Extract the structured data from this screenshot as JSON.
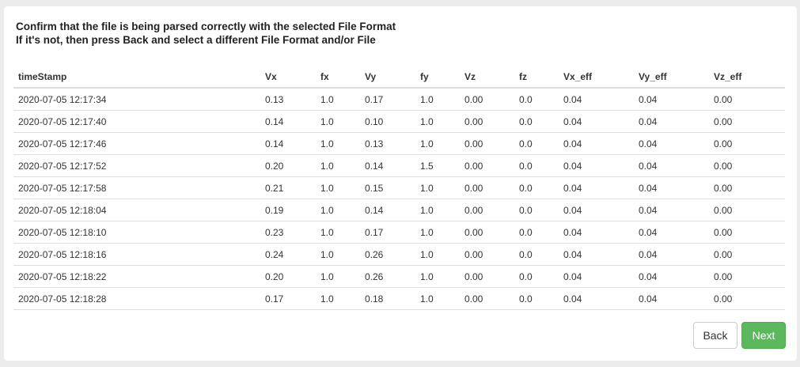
{
  "instructions": {
    "line1": "Confirm that the file is being parsed correctly with the selected File Format",
    "line2": "If it's not, then press Back and select a different File Format and/or File"
  },
  "table": {
    "columns": [
      "timeStamp",
      "Vx",
      "fx",
      "Vy",
      "fy",
      "Vz",
      "fz",
      "Vx_eff",
      "Vy_eff",
      "Vz_eff"
    ],
    "rows": [
      [
        "2020-07-05 12:17:34",
        "0.13",
        "1.0",
        "0.17",
        "1.0",
        "0.00",
        "0.0",
        "0.04",
        "0.04",
        "0.00"
      ],
      [
        "2020-07-05 12:17:40",
        "0.14",
        "1.0",
        "0.10",
        "1.0",
        "0.00",
        "0.0",
        "0.04",
        "0.04",
        "0.00"
      ],
      [
        "2020-07-05 12:17:46",
        "0.14",
        "1.0",
        "0.13",
        "1.0",
        "0.00",
        "0.0",
        "0.04",
        "0.04",
        "0.00"
      ],
      [
        "2020-07-05 12:17:52",
        "0.20",
        "1.0",
        "0.14",
        "1.5",
        "0.00",
        "0.0",
        "0.04",
        "0.04",
        "0.00"
      ],
      [
        "2020-07-05 12:17:58",
        "0.21",
        "1.0",
        "0.15",
        "1.0",
        "0.00",
        "0.0",
        "0.04",
        "0.04",
        "0.00"
      ],
      [
        "2020-07-05 12:18:04",
        "0.19",
        "1.0",
        "0.14",
        "1.0",
        "0.00",
        "0.0",
        "0.04",
        "0.04",
        "0.00"
      ],
      [
        "2020-07-05 12:18:10",
        "0.23",
        "1.0",
        "0.17",
        "1.0",
        "0.00",
        "0.0",
        "0.04",
        "0.04",
        "0.00"
      ],
      [
        "2020-07-05 12:18:16",
        "0.24",
        "1.0",
        "0.26",
        "1.0",
        "0.00",
        "0.0",
        "0.04",
        "0.04",
        "0.00"
      ],
      [
        "2020-07-05 12:18:22",
        "0.20",
        "1.0",
        "0.26",
        "1.0",
        "0.00",
        "0.0",
        "0.04",
        "0.04",
        "0.00"
      ],
      [
        "2020-07-05 12:18:28",
        "0.17",
        "1.0",
        "0.18",
        "1.0",
        "0.00",
        "0.0",
        "0.04",
        "0.04",
        "0.00"
      ]
    ]
  },
  "buttons": {
    "back_label": "Back",
    "next_label": "Next"
  },
  "colors": {
    "page_background": "#ececec",
    "card_background": "#ffffff",
    "next_button": "#5cb85c",
    "table_border": "#dddddd"
  }
}
